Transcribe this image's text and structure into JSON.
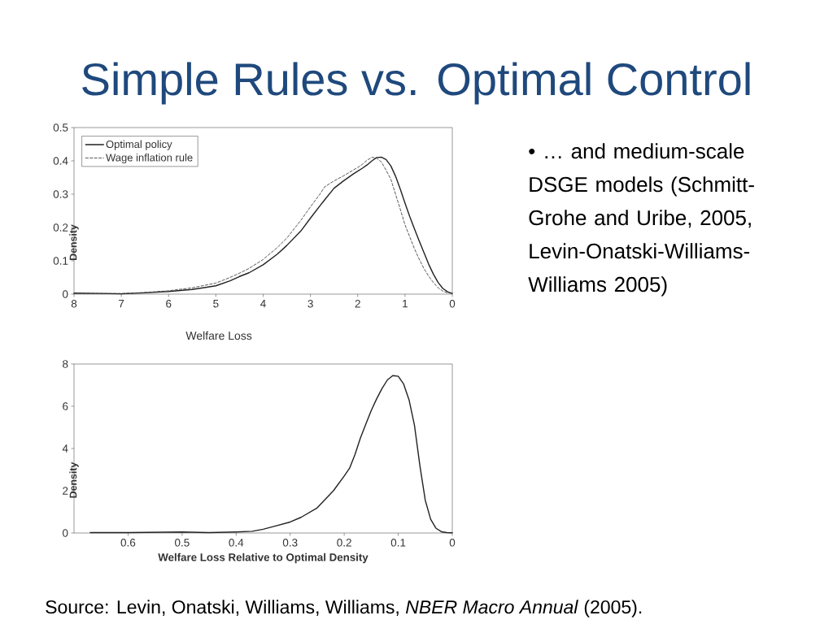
{
  "chart_data": [
    {
      "type": "other",
      "title": "Simple Rules vs. Optimal Control",
      "annotations": [
        "• … and medium-scale DSGE models (Schmitt-Grohe and Uribe, 2005, Levin-Onatski-Williams-Williams 2005)",
        "Source: Levin, Onatski, Williams, Williams, *NBER Macro Annual* (2005)."
      ]
    },
    {
      "type": "line",
      "xlabel": "Welfare Loss",
      "ylabel": "Density",
      "x": [
        8,
        7.5,
        7,
        6.5,
        6,
        5.5,
        5,
        4.7,
        4.5,
        4.3,
        4,
        3.7,
        3.5,
        3.2,
        3,
        2.8,
        2.7,
        2.5,
        2.3,
        2.1,
        2,
        1.9,
        1.8,
        1.7,
        1.6,
        1.5,
        1.4,
        1.3,
        1.2,
        1.1,
        1,
        0.9,
        0.8,
        0.7,
        0.6,
        0.5,
        0.4,
        0.3,
        0.2,
        0.1,
        0
      ],
      "series": [
        {
          "name": "Optimal policy",
          "color": "#222222",
          "line_style": "solid",
          "values": [
            0.003,
            0.002,
            0.001,
            0.004,
            0.008,
            0.014,
            0.025,
            0.04,
            0.053,
            0.064,
            0.088,
            0.12,
            0.146,
            0.19,
            0.228,
            0.265,
            0.283,
            0.318,
            0.34,
            0.36,
            0.369,
            0.378,
            0.388,
            0.4,
            0.41,
            0.411,
            0.404,
            0.385,
            0.354,
            0.315,
            0.273,
            0.233,
            0.196,
            0.16,
            0.125,
            0.09,
            0.06,
            0.035,
            0.017,
            0.007,
            0.002
          ]
        },
        {
          "name": "Wage inflation rule",
          "color": "#444444",
          "line_style": "dashed",
          "values": [
            0.002,
            0.002,
            0.002,
            0.005,
            0.01,
            0.019,
            0.033,
            0.05,
            0.063,
            0.077,
            0.104,
            0.14,
            0.168,
            0.222,
            0.262,
            0.3,
            0.322,
            0.34,
            0.355,
            0.372,
            0.38,
            0.39,
            0.402,
            0.411,
            0.408,
            0.397,
            0.372,
            0.345,
            0.3,
            0.255,
            0.208,
            0.172,
            0.136,
            0.105,
            0.077,
            0.054,
            0.035,
            0.019,
            0.009,
            0.004,
            0.002
          ]
        }
      ],
      "xlim": [
        8,
        0
      ],
      "xticks": [
        8,
        7,
        6,
        5,
        4,
        3,
        2,
        1,
        0
      ],
      "ylim": [
        0,
        0.5
      ],
      "yticks": [
        0,
        0.1,
        0.2,
        0.3,
        0.4,
        0.5
      ],
      "legend": "top left"
    },
    {
      "type": "line",
      "xlabel": "Welfare Loss Relative to Optimal Density",
      "ylabel": "Density",
      "x": [
        0.67,
        0.6,
        0.5,
        0.45,
        0.4,
        0.37,
        0.35,
        0.33,
        0.3,
        0.28,
        0.25,
        0.22,
        0.2,
        0.19,
        0.18,
        0.17,
        0.16,
        0.15,
        0.14,
        0.13,
        0.12,
        0.11,
        0.1,
        0.09,
        0.08,
        0.07,
        0.06,
        0.05,
        0.04,
        0.03,
        0.02,
        0.01,
        0
      ],
      "series": [
        {
          "color": "#222222",
          "line_style": "solid",
          "values": [
            0.02,
            0.02,
            0.05,
            0.02,
            0.05,
            0.08,
            0.18,
            0.31,
            0.52,
            0.74,
            1.19,
            2.0,
            2.7,
            3.07,
            3.72,
            4.5,
            5.15,
            5.8,
            6.35,
            6.84,
            7.25,
            7.45,
            7.42,
            7.05,
            6.3,
            5.1,
            3.2,
            1.55,
            0.65,
            0.22,
            0.06,
            0.02,
            0.01
          ]
        }
      ],
      "xlim": [
        0.7,
        0
      ],
      "xticks": [
        0.6,
        0.5,
        0.4,
        0.3,
        0.2,
        0.1,
        0
      ],
      "ylim": [
        0,
        8
      ],
      "yticks": [
        0,
        2,
        4,
        6,
        8
      ]
    }
  ]
}
